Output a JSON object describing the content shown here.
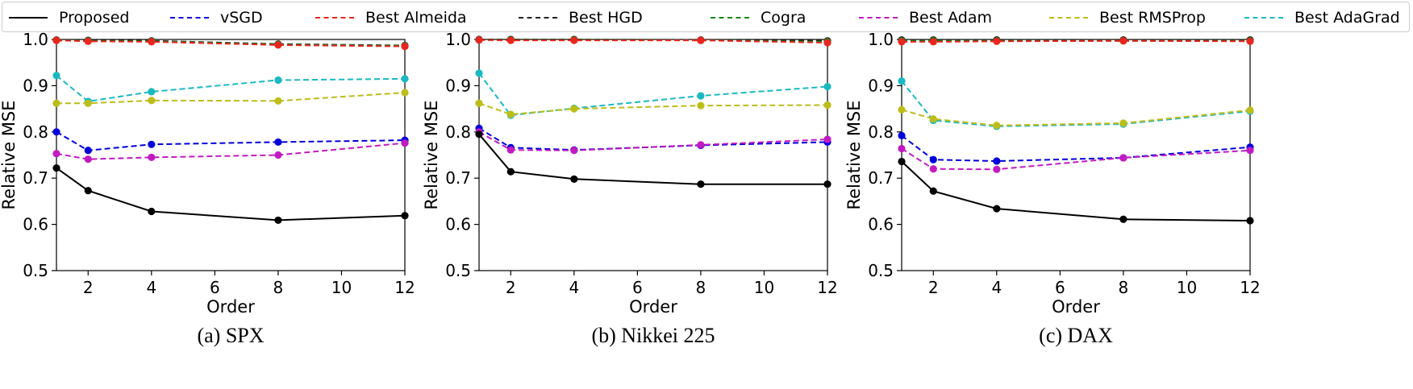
{
  "legend": [
    {
      "name": "Proposed",
      "color": "#000000",
      "dashed": false
    },
    {
      "name": "vSGD",
      "color": "#0000dd",
      "dashed": true
    },
    {
      "name": "Best Almeida",
      "color": "#e8261f",
      "dashed": true
    },
    {
      "name": "Best HGD",
      "color": "#222222",
      "dashed": true
    },
    {
      "name": "Cogra",
      "color": "#138a13",
      "dashed": true
    },
    {
      "name": "Best Adam",
      "color": "#c21ac2",
      "dashed": true
    },
    {
      "name": "Best RMSProp",
      "color": "#bdbd1a",
      "dashed": true
    },
    {
      "name": "Best AdaGrad",
      "color": "#1ab9c2",
      "dashed": true
    }
  ],
  "chart_data": [
    {
      "type": "line",
      "title": "(a) SPX",
      "xlabel": "Order",
      "ylabel": "Relative MSE",
      "xlim": [
        1,
        12
      ],
      "ylim": [
        0.5,
        1.0
      ],
      "xticks": [
        2,
        4,
        6,
        8,
        10,
        12
      ],
      "yticks": [
        0.5,
        0.6,
        0.7,
        0.8,
        0.9,
        1.0
      ],
      "x": [
        1,
        2,
        4,
        8,
        12
      ],
      "series": [
        {
          "name": "Best HGD",
          "values": [
            0.999,
            0.998,
            0.997,
            0.99,
            0.987
          ]
        },
        {
          "name": "Cogra",
          "values": [
            0.998,
            0.997,
            0.996,
            0.989,
            0.986
          ]
        },
        {
          "name": "Best Almeida",
          "values": [
            0.998,
            0.996,
            0.995,
            0.988,
            0.985
          ]
        },
        {
          "name": "Best AdaGrad",
          "values": [
            0.922,
            0.866,
            0.887,
            0.912,
            0.915
          ]
        },
        {
          "name": "Best RMSProp",
          "values": [
            0.862,
            0.862,
            0.868,
            0.867,
            0.885
          ]
        },
        {
          "name": "vSGD",
          "values": [
            0.8,
            0.76,
            0.773,
            0.778,
            0.782
          ]
        },
        {
          "name": "Best Adam",
          "values": [
            0.753,
            0.741,
            0.745,
            0.75,
            0.776
          ]
        },
        {
          "name": "Proposed",
          "values": [
            0.722,
            0.673,
            0.628,
            0.609,
            0.619
          ]
        }
      ]
    },
    {
      "type": "line",
      "title": "(b) Nikkei 225",
      "xlabel": "Order",
      "ylabel": "Relative MSE",
      "xlim": [
        1,
        12
      ],
      "ylim": [
        0.5,
        1.0
      ],
      "xticks": [
        2,
        4,
        6,
        8,
        10,
        12
      ],
      "yticks": [
        0.5,
        0.6,
        0.7,
        0.8,
        0.9,
        1.0
      ],
      "x": [
        1,
        2,
        4,
        8,
        12
      ],
      "series": [
        {
          "name": "Best HGD",
          "values": [
            1.0,
            1.0,
            1.0,
            0.999,
            0.997
          ]
        },
        {
          "name": "Cogra",
          "values": [
            0.999,
            0.999,
            0.999,
            0.998,
            0.995
          ]
        },
        {
          "name": "Best Almeida",
          "values": [
            0.999,
            0.998,
            0.998,
            0.998,
            0.993
          ]
        },
        {
          "name": "Best AdaGrad",
          "values": [
            0.927,
            0.836,
            0.851,
            0.878,
            0.898
          ]
        },
        {
          "name": "Best RMSProp",
          "values": [
            0.862,
            0.838,
            0.85,
            0.857,
            0.858
          ]
        },
        {
          "name": "vSGD",
          "values": [
            0.808,
            0.766,
            0.761,
            0.771,
            0.778
          ]
        },
        {
          "name": "Best Adam",
          "values": [
            0.8,
            0.761,
            0.76,
            0.772,
            0.784
          ]
        },
        {
          "name": "Proposed",
          "values": [
            0.795,
            0.714,
            0.698,
            0.687,
            0.687
          ]
        }
      ]
    },
    {
      "type": "line",
      "title": "(c) DAX",
      "xlabel": "Order",
      "ylabel": "Relative MSE",
      "xlim": [
        1,
        12
      ],
      "ylim": [
        0.5,
        1.0
      ],
      "xticks": [
        2,
        4,
        6,
        8,
        10,
        12
      ],
      "yticks": [
        0.5,
        0.6,
        0.7,
        0.8,
        0.9,
        1.0
      ],
      "x": [
        1,
        2,
        4,
        8,
        12
      ],
      "series": [
        {
          "name": "Best HGD",
          "values": [
            0.999,
            0.999,
            0.999,
            0.999,
            0.999
          ]
        },
        {
          "name": "Cogra",
          "values": [
            0.997,
            0.997,
            0.997,
            0.997,
            0.997
          ]
        },
        {
          "name": "Best Almeida",
          "values": [
            0.995,
            0.995,
            0.996,
            0.997,
            0.996
          ]
        },
        {
          "name": "Best AdaGrad",
          "values": [
            0.91,
            0.825,
            0.812,
            0.817,
            0.845
          ]
        },
        {
          "name": "Best RMSProp",
          "values": [
            0.848,
            0.828,
            0.814,
            0.819,
            0.847
          ]
        },
        {
          "name": "vSGD",
          "values": [
            0.792,
            0.74,
            0.737,
            0.744,
            0.767
          ]
        },
        {
          "name": "Best Adam",
          "values": [
            0.764,
            0.72,
            0.719,
            0.744,
            0.76
          ]
        },
        {
          "name": "Proposed",
          "values": [
            0.736,
            0.672,
            0.634,
            0.611,
            0.608
          ]
        }
      ]
    }
  ]
}
